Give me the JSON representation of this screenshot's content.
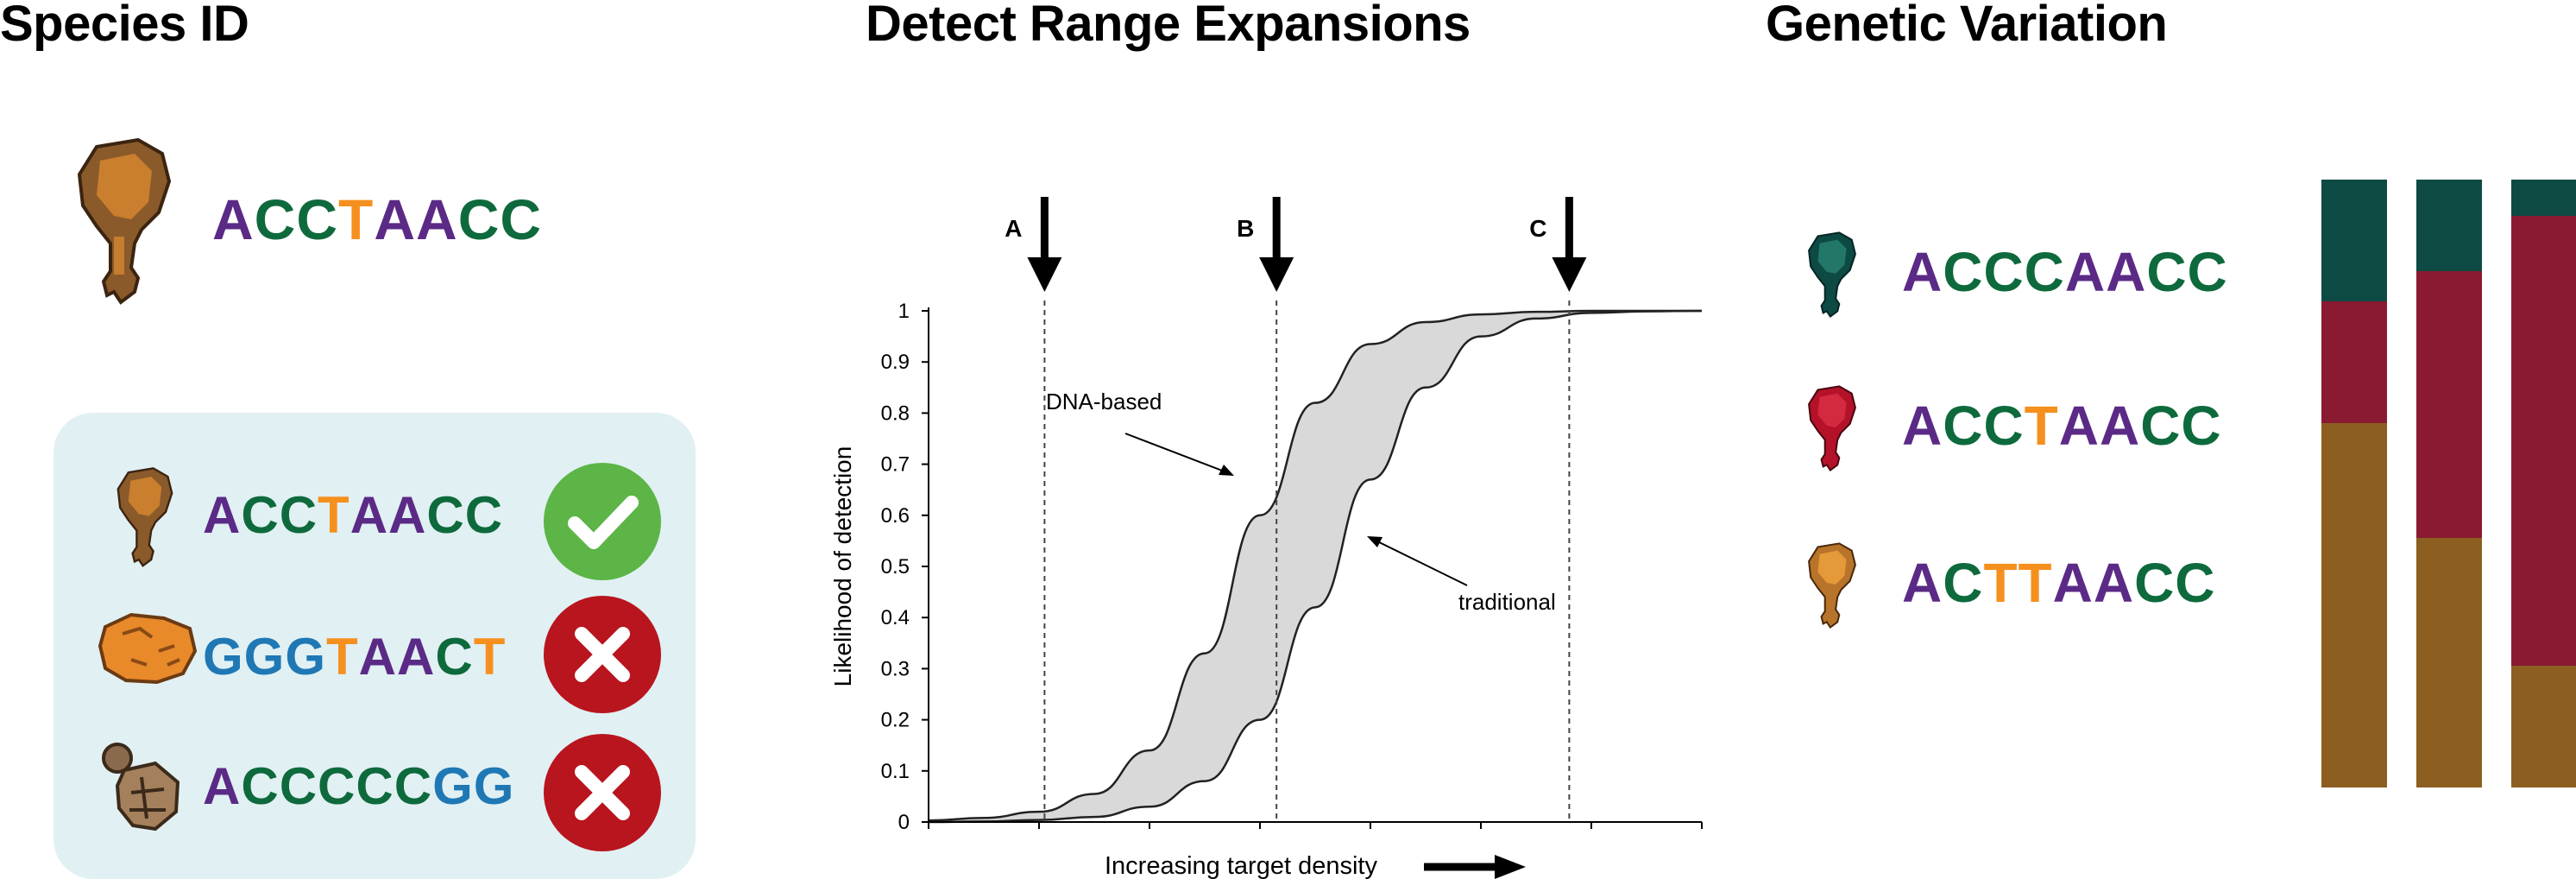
{
  "titles": {
    "left": "Species ID",
    "middle": "Detect Range Expansions",
    "right": "Genetic Variation"
  },
  "colors": {
    "A": "#5b2a86",
    "C": "#0e6a3c",
    "T": "#f5901f",
    "G": "#1f78b4",
    "check": "#5cb546",
    "cross": "#b8151f",
    "panel": "#e1f0f3",
    "bar_teal": "#0d4a44",
    "bar_red": "#8a1a32",
    "bar_brown": "#8c5e1f"
  },
  "species_id": {
    "query": {
      "sequence": "ACCTAACC",
      "icon": "brown-chicken-leg-icon"
    },
    "matches": [
      {
        "sequence": "ACCTAACC",
        "icon": "brown-chicken-leg-icon",
        "result": "match"
      },
      {
        "sequence": "GGGTAACT",
        "icon": "orange-nugget-icon",
        "result": "no-match"
      },
      {
        "sequence": "ACCCCCGG",
        "icon": "brown-shell-icon",
        "result": "no-match"
      }
    ]
  },
  "chart_data": {
    "type": "line",
    "title": "",
    "xlabel": "Increasing target density",
    "ylabel": "Likelihood of detection",
    "ylim": [
      0,
      1
    ],
    "yticks": [
      "0",
      "0.1",
      "0.2",
      "0.3",
      "0.4",
      "0.5",
      "0.6",
      "0.7",
      "0.8",
      "0.9",
      "1"
    ],
    "xlim": [
      0,
      7
    ],
    "x": [
      0,
      0.5,
      1,
      1.5,
      2,
      2.5,
      3,
      3.5,
      4,
      4.5,
      5,
      5.5,
      6,
      6.5,
      7
    ],
    "series": [
      {
        "name": "DNA-based",
        "values": [
          0.003,
          0.008,
          0.02,
          0.055,
          0.14,
          0.33,
          0.6,
          0.82,
          0.935,
          0.978,
          0.993,
          0.998,
          1,
          1,
          1
        ]
      },
      {
        "name": "traditional",
        "values": [
          0,
          0.001,
          0.004,
          0.01,
          0.03,
          0.08,
          0.2,
          0.42,
          0.67,
          0.85,
          0.95,
          0.985,
          0.996,
          0.999,
          1
        ]
      }
    ],
    "markers": [
      {
        "label": "A",
        "x": 1.05
      },
      {
        "label": "B",
        "x": 3.15
      },
      {
        "label": "C",
        "x": 5.8
      }
    ],
    "annotations": [
      "DNA-based",
      "traditional"
    ],
    "grid": false,
    "legend": "none"
  },
  "genetic_variation": {
    "rows": [
      {
        "sequence": "ACCCAACC",
        "icon": "teal-chicken-leg-icon"
      },
      {
        "sequence": "ACCTAACC",
        "icon": "red-chicken-leg-icon"
      },
      {
        "sequence": "ACTTAACC",
        "icon": "orange-chicken-leg-icon"
      }
    ],
    "bars": [
      {
        "teal": 0.2,
        "red": 0.2,
        "brown": 0.6
      },
      {
        "teal": 0.15,
        "red": 0.44,
        "brown": 0.41
      },
      {
        "teal": 0.06,
        "red": 0.74,
        "brown": 0.2
      }
    ]
  }
}
